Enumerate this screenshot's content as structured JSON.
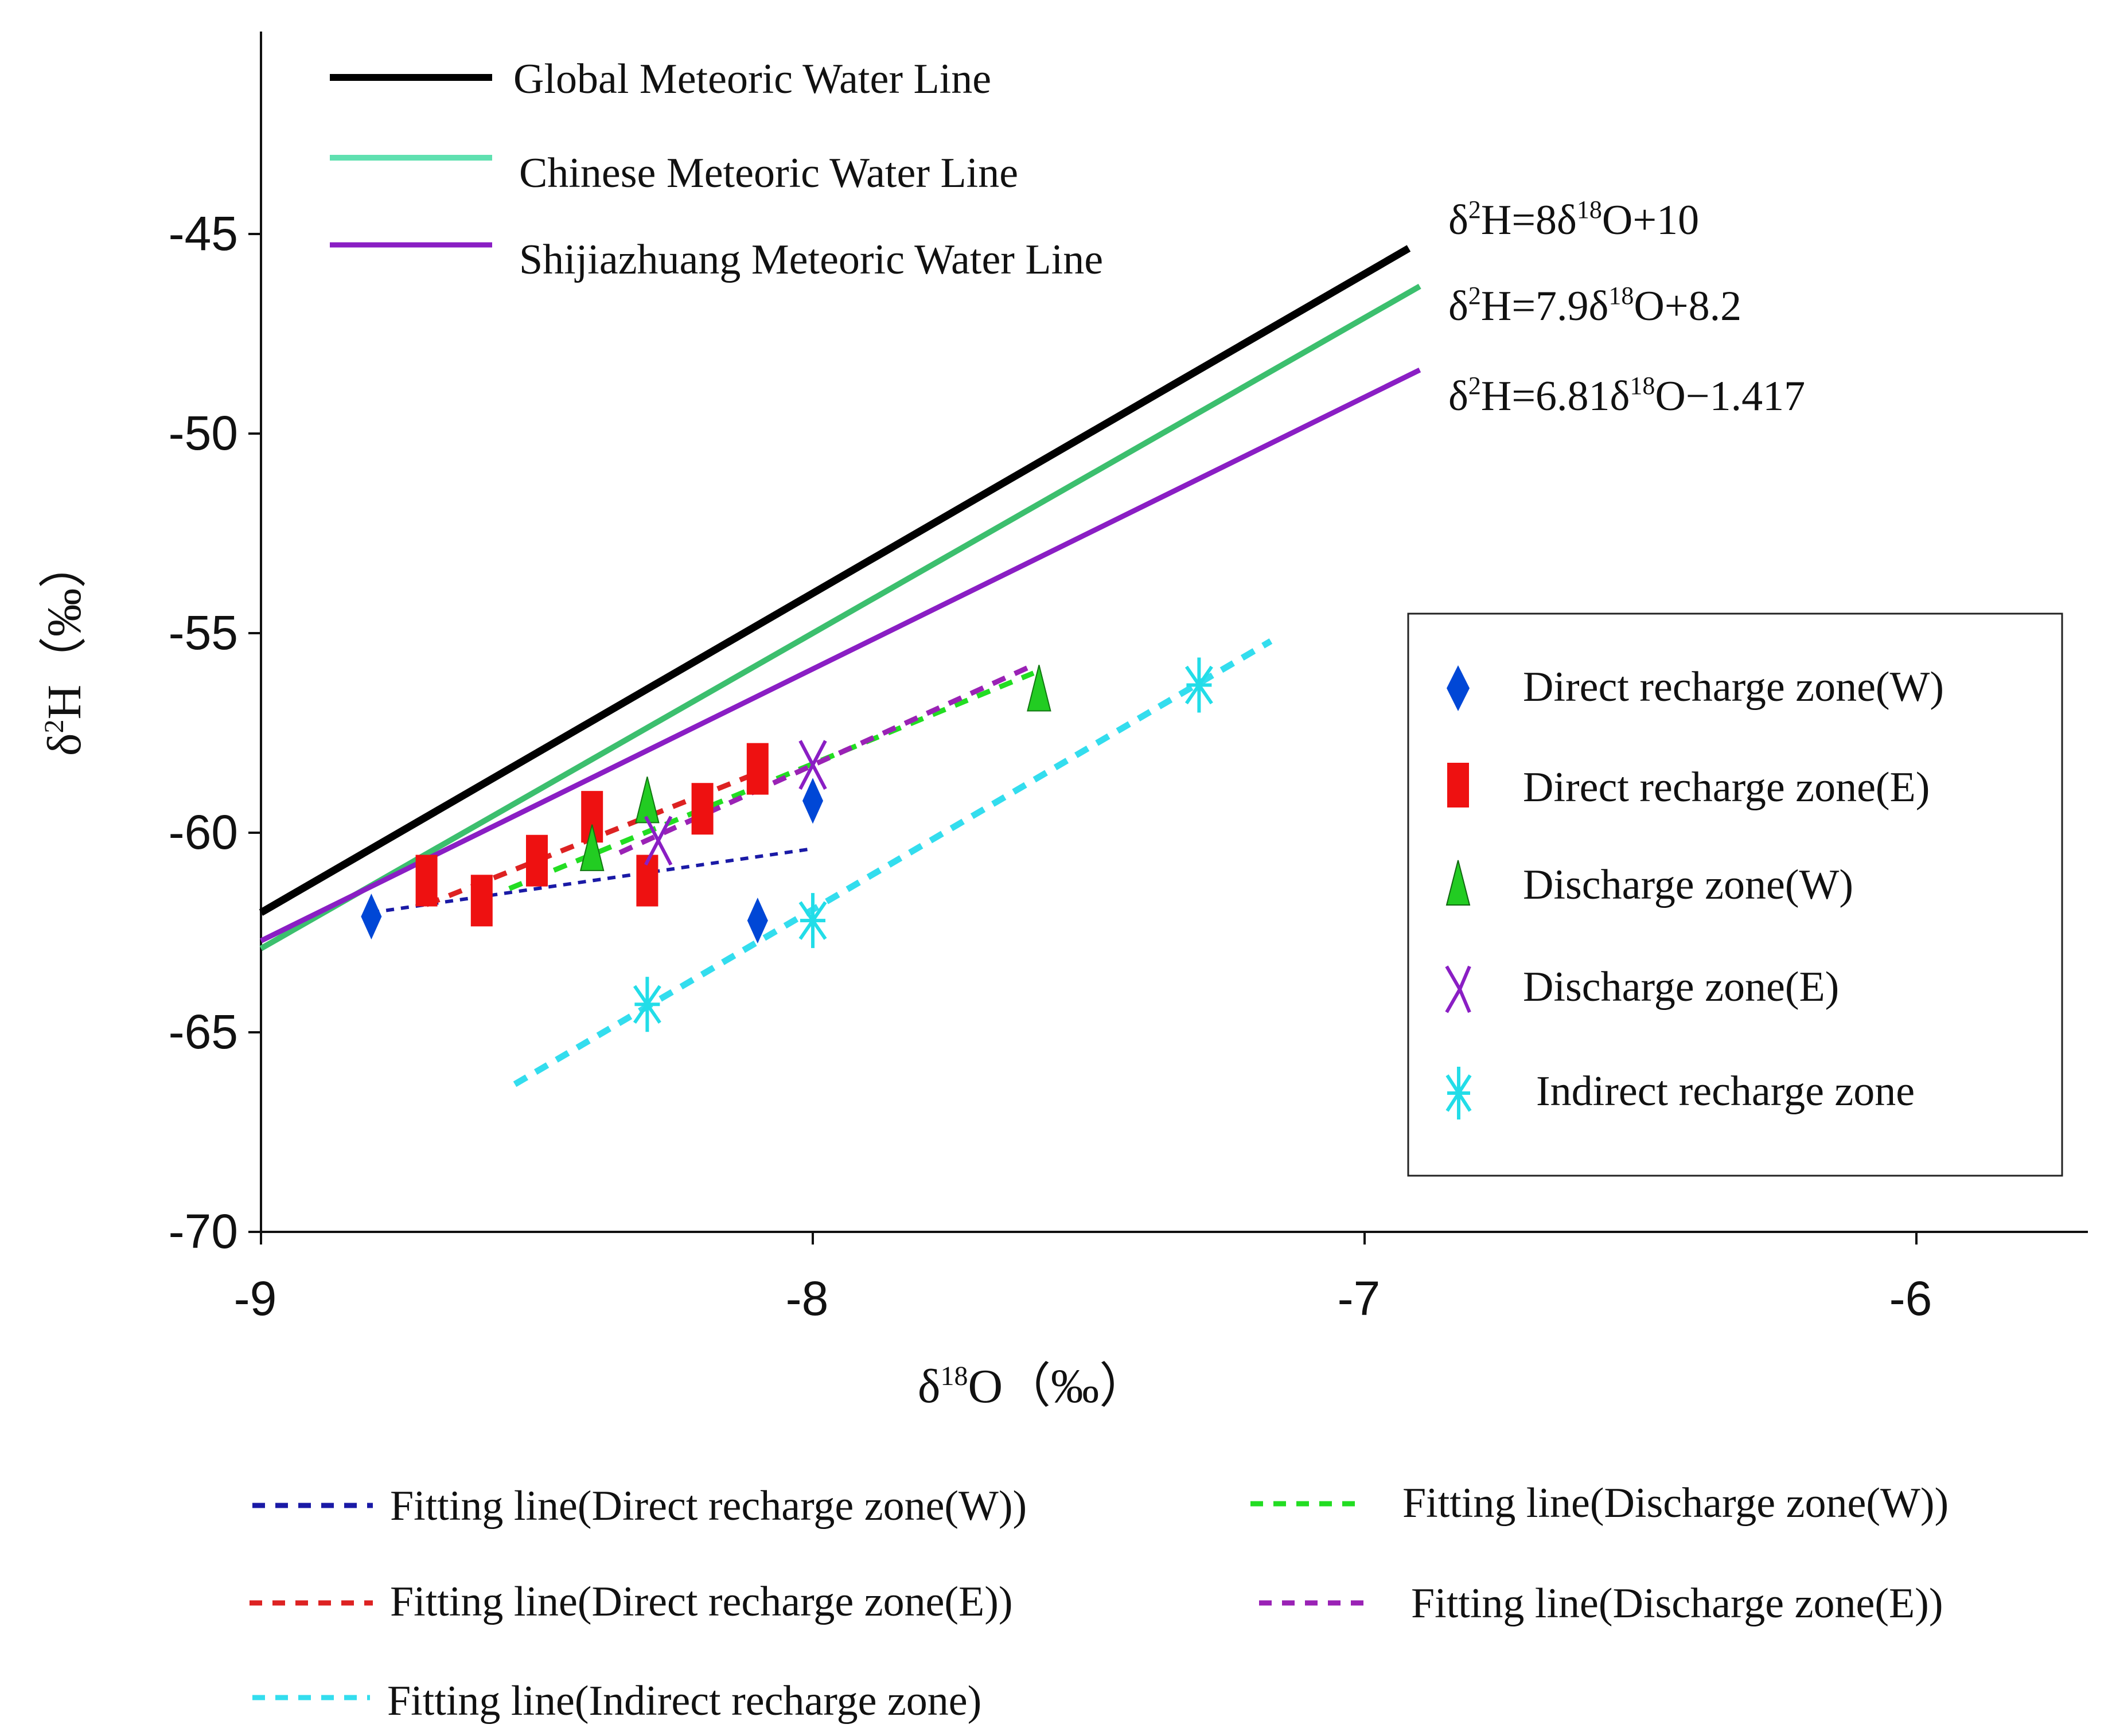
{
  "chart_data": {
    "type": "scatter",
    "title": "",
    "xlabel": "δ18O（‰）",
    "ylabel": "δ2H（‰）",
    "xlim": [
      -9,
      -5.7
    ],
    "ylim": [
      -70,
      -40
    ],
    "x_ticks": [
      -9,
      -8,
      -7,
      -6
    ],
    "y_ticks": [
      -70,
      -65,
      -60,
      -55,
      -50,
      -45
    ],
    "x_tick_labels": [
      "-9",
      "-8",
      "-7",
      "-6"
    ],
    "y_tick_labels": [
      "-70",
      "-65",
      "-60",
      "-55",
      "-50",
      "-45"
    ],
    "meteoric_lines": [
      {
        "id": "gmwl",
        "name": "Global Meteoric Water Line",
        "equation": "δ2H=8δ18O+10",
        "slope": 8,
        "intercept": 10,
        "x_range": [
          -9,
          -6.92
        ],
        "color": "#000000"
      },
      {
        "id": "cmwl",
        "name": "Chinese Meteoric Water Line",
        "equation": "δ2H=7.9δ18O+8.2",
        "slope": 7.9,
        "intercept": 8.2,
        "x_range": [
          -9,
          -6.9
        ],
        "color": "#3cbf6e"
      },
      {
        "id": "smwl",
        "name": "Shijiazhuang Meteoric Water Line",
        "equation": "δ2H=6.81δ18O-1.417",
        "slope": 6.81,
        "intercept": -1.417,
        "x_range": [
          -9,
          -6.9
        ],
        "color": "#8a1ec4"
      }
    ],
    "series": [
      {
        "id": "drw",
        "name": "Direct recharge zone(W)",
        "marker": "diamond",
        "color": "#0047d6",
        "points": [
          [
            -8.8,
            -62.1
          ],
          [
            -8.1,
            -62.2
          ],
          [
            -8.0,
            -59.2
          ]
        ]
      },
      {
        "id": "dre",
        "name": "Direct recharge zone(E)",
        "marker": "rect",
        "color": "#ee1111",
        "points": [
          [
            -8.7,
            -61.2
          ],
          [
            -8.6,
            -61.7
          ],
          [
            -8.5,
            -60.7
          ],
          [
            -8.4,
            -59.6
          ],
          [
            -8.3,
            -61.2
          ],
          [
            -8.2,
            -59.4
          ],
          [
            -8.1,
            -58.4
          ]
        ]
      },
      {
        "id": "dw",
        "name": "Discharge zone(W)",
        "marker": "triangle",
        "color": "#22cc22",
        "points": [
          [
            -8.4,
            -60.4
          ],
          [
            -8.3,
            -59.2
          ],
          [
            -7.59,
            -56.4
          ]
        ]
      },
      {
        "id": "de",
        "name": "Discharge zone(E)",
        "marker": "x",
        "color": "#8a1ec4",
        "points": [
          [
            -8.28,
            -60.2
          ],
          [
            -8.0,
            -58.3
          ]
        ]
      },
      {
        "id": "ir",
        "name": "Indirect recharge zone",
        "marker": "star",
        "color": "#22dde8",
        "points": [
          [
            -8.3,
            -64.3
          ],
          [
            -8.0,
            -62.2
          ],
          [
            -7.3,
            -56.3
          ]
        ]
      }
    ],
    "fitting_lines": [
      {
        "id": "fit-drw",
        "name": "Fitting line(Direct recharge zone(W))",
        "color": "#1a1aa6",
        "x": [
          -8.8,
          -8.0
        ],
        "y": [
          -62.0,
          -60.4
        ]
      },
      {
        "id": "fit-dw",
        "name": "Fitting line(Discharge zone(W))",
        "color": "#22dd22",
        "x": [
          -8.55,
          -7.6
        ],
        "y": [
          -61.4,
          -56.0
        ]
      },
      {
        "id": "fit-dre",
        "name": "Fitting line(Direct recharge zone(E))",
        "color": "#dd2222",
        "x": [
          -8.7,
          -8.1
        ],
        "y": [
          -61.8,
          -58.5
        ]
      },
      {
        "id": "fit-de",
        "name": "Fitting line(Discharge zone(E))",
        "color": "#9a22b5",
        "x": [
          -8.35,
          -7.6
        ],
        "y": [
          -60.5,
          -55.8
        ]
      },
      {
        "id": "fit-ir",
        "name": "Fitting line(Indirect recharge zone)",
        "color": "#33ddee",
        "x": [
          -8.54,
          -7.17
        ],
        "y": [
          -66.3,
          -55.2
        ]
      }
    ]
  }
}
